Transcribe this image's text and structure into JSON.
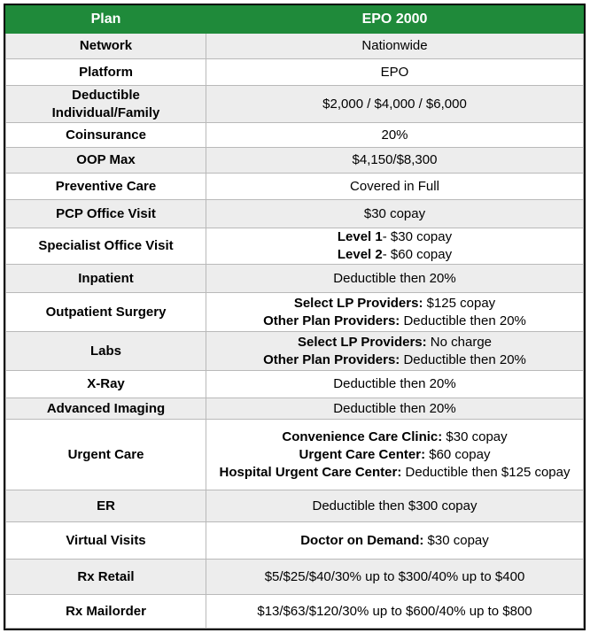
{
  "header": {
    "plan_label": "Plan",
    "plan_name": "EPO 2000"
  },
  "rows": [
    {
      "label": [
        "Network"
      ],
      "value": [
        [
          {
            "b": "",
            "t": "Nationwide"
          }
        ]
      ]
    },
    {
      "label": [
        "Platform"
      ],
      "value": [
        [
          {
            "b": "",
            "t": "EPO"
          }
        ]
      ]
    },
    {
      "label": [
        "Deductible",
        "Individual/Family"
      ],
      "value": [
        [
          {
            "b": "",
            "t": "$2,000 / $4,000 / $6,000"
          }
        ]
      ]
    },
    {
      "label": [
        "Coinsurance"
      ],
      "value": [
        [
          {
            "b": "",
            "t": "20%"
          }
        ]
      ]
    },
    {
      "label": [
        "OOP Max"
      ],
      "value": [
        [
          {
            "b": "",
            "t": "$4,150/$8,300"
          }
        ]
      ]
    },
    {
      "label": [
        "Preventive Care"
      ],
      "value": [
        [
          {
            "b": "",
            "t": "Covered in Full"
          }
        ]
      ]
    },
    {
      "label": [
        "PCP Office Visit"
      ],
      "value": [
        [
          {
            "b": "",
            "t": "$30 copay"
          }
        ]
      ]
    },
    {
      "label": [
        "Specialist Office Visit"
      ],
      "value": [
        [
          {
            "b": "Level 1",
            "t": "- $30 copay"
          }
        ],
        [
          {
            "b": "Level 2",
            "t": "- $60 copay"
          }
        ]
      ]
    },
    {
      "label": [
        "Inpatient"
      ],
      "value": [
        [
          {
            "b": "",
            "t": "Deductible then 20%"
          }
        ]
      ]
    },
    {
      "label": [
        "Outpatient Surgery"
      ],
      "value": [
        [
          {
            "b": "Select LP Providers:",
            "t": " $125 copay"
          }
        ],
        [
          {
            "b": "Other Plan Providers:",
            "t": " Deductible then 20%"
          }
        ]
      ]
    },
    {
      "label": [
        "Labs"
      ],
      "value": [
        [
          {
            "b": "Select LP Providers:",
            "t": " No charge"
          }
        ],
        [
          {
            "b": "Other Plan Providers:",
            "t": " Deductible then 20%"
          }
        ]
      ]
    },
    {
      "label": [
        "X-Ray"
      ],
      "value": [
        [
          {
            "b": "",
            "t": "Deductible then 20%"
          }
        ]
      ]
    },
    {
      "label": [
        "Advanced Imaging"
      ],
      "value": [
        [
          {
            "b": "",
            "t": "Deductible then 20%"
          }
        ]
      ]
    },
    {
      "label": [
        "Urgent Care"
      ],
      "value": [
        [
          {
            "b": "Convenience Care Clinic:",
            "t": " $30 copay"
          }
        ],
        [
          {
            "b": "Urgent Care Center:",
            "t": " $60 copay"
          }
        ],
        [
          {
            "b": "Hospital Urgent Care Center:",
            "t": " Deductible then $125 copay"
          }
        ]
      ]
    },
    {
      "label": [
        "ER"
      ],
      "value": [
        [
          {
            "b": "",
            "t": "Deductible then $300 copay"
          }
        ]
      ]
    },
    {
      "label": [
        "Virtual Visits"
      ],
      "value": [
        [
          {
            "b": "Doctor on Demand:",
            "t": " $30 copay"
          }
        ]
      ]
    },
    {
      "label": [
        "Rx Retail"
      ],
      "value": [
        [
          {
            "b": "",
            "t": "$5/$25/$40/30% up to $300/40% up to $400"
          }
        ]
      ]
    },
    {
      "label": [
        "Rx Mailorder"
      ],
      "value": [
        [
          {
            "b": "",
            "t": "$13/$63/$120/30% up to $600/40% up to $800"
          }
        ]
      ]
    }
  ],
  "colors": {
    "header_bg": "#1f8a3a",
    "header_text": "#ffffff",
    "shaded_row": "#ededed",
    "plain_row": "#ffffff",
    "border": "#000000"
  }
}
